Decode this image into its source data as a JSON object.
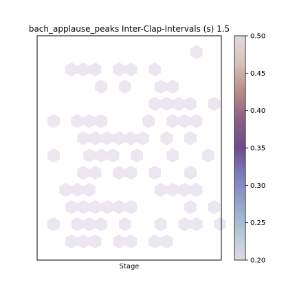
{
  "chart_data": {
    "type": "heatmap",
    "subtype": "hexbin",
    "title": "bach_applause_peaks Inter-Clap-Intervals (s) 1.5",
    "xlabel": "Stage",
    "ylabel": "",
    "x_ticks_shown": false,
    "y_ticks_shown": false,
    "grid": false,
    "colormap": "twilight (lower half)",
    "cell_color": "#ebe6ef",
    "colorbar": {
      "position": "right",
      "range": [
        0.2,
        0.5
      ],
      "ticks": [
        "0.20",
        "0.25",
        "0.30",
        "0.35",
        "0.40",
        "0.45",
        "0.50"
      ],
      "colors": [
        "#e2d9e2",
        "#b3c7d5",
        "#94a6cb",
        "#7e7dc0",
        "#6e4b8d",
        "#8b5f84",
        "#b88a8a",
        "#d7c2b6",
        "#e2d9e2"
      ]
    },
    "value_note": "every occupied cell has the colorbar minimum value",
    "cells": [
      {
        "col": 12,
        "row": 0,
        "value": 0.2
      },
      {
        "col": 1,
        "row": 1,
        "value": 0.2
      },
      {
        "col": 2,
        "row": 1,
        "value": 0.2
      },
      {
        "col": 3,
        "row": 1,
        "value": 0.2
      },
      {
        "col": 5,
        "row": 1,
        "value": 0.2
      },
      {
        "col": 6,
        "row": 1,
        "value": 0.2
      },
      {
        "col": 8,
        "row": 1,
        "value": 0.2
      },
      {
        "col": 4,
        "row": 2,
        "value": 0.2
      },
      {
        "col": 6,
        "row": 2,
        "value": 0.2
      },
      {
        "col": 9,
        "row": 2,
        "value": 0.2
      },
      {
        "col": 10,
        "row": 2,
        "value": 0.2
      },
      {
        "col": 8,
        "row": 3,
        "value": 0.2
      },
      {
        "col": 9,
        "row": 3,
        "value": 0.2
      },
      {
        "col": 10,
        "row": 3,
        "value": 0.2
      },
      {
        "col": 11,
        "row": 3,
        "value": 0.2
      },
      {
        "col": 13,
        "row": 3,
        "value": 0.2
      },
      {
        "col": 0,
        "row": 4,
        "value": 0.2
      },
      {
        "col": 2,
        "row": 4,
        "value": 0.2
      },
      {
        "col": 3,
        "row": 4,
        "value": 0.2
      },
      {
        "col": 4,
        "row": 4,
        "value": 0.2
      },
      {
        "col": 8,
        "row": 4,
        "value": 0.2
      },
      {
        "col": 10,
        "row": 4,
        "value": 0.2
      },
      {
        "col": 11,
        "row": 4,
        "value": 0.2
      },
      {
        "col": 12,
        "row": 4,
        "value": 0.2
      },
      {
        "col": 2,
        "row": 5,
        "value": 0.2
      },
      {
        "col": 3,
        "row": 5,
        "value": 0.2
      },
      {
        "col": 4,
        "row": 5,
        "value": 0.2
      },
      {
        "col": 5,
        "row": 5,
        "value": 0.2
      },
      {
        "col": 6,
        "row": 5,
        "value": 0.2
      },
      {
        "col": 7,
        "row": 5,
        "value": 0.2
      },
      {
        "col": 9,
        "row": 5,
        "value": 0.2
      },
      {
        "col": 11,
        "row": 5,
        "value": 0.2
      },
      {
        "col": 0,
        "row": 6,
        "value": 0.2
      },
      {
        "col": 3,
        "row": 6,
        "value": 0.2
      },
      {
        "col": 4,
        "row": 6,
        "value": 0.2
      },
      {
        "col": 5,
        "row": 6,
        "value": 0.2
      },
      {
        "col": 7,
        "row": 6,
        "value": 0.2
      },
      {
        "col": 10,
        "row": 6,
        "value": 0.2
      },
      {
        "col": 13,
        "row": 6,
        "value": 0.2
      },
      {
        "col": 2,
        "row": 7,
        "value": 0.2
      },
      {
        "col": 3,
        "row": 7,
        "value": 0.2
      },
      {
        "col": 5,
        "row": 7,
        "value": 0.2
      },
      {
        "col": 6,
        "row": 7,
        "value": 0.2
      },
      {
        "col": 8,
        "row": 7,
        "value": 0.2
      },
      {
        "col": 11,
        "row": 7,
        "value": 0.2
      },
      {
        "col": 1,
        "row": 8,
        "value": 0.2
      },
      {
        "col": 2,
        "row": 8,
        "value": 0.2
      },
      {
        "col": 3,
        "row": 8,
        "value": 0.2
      },
      {
        "col": 9,
        "row": 8,
        "value": 0.2
      },
      {
        "col": 10,
        "row": 8,
        "value": 0.2
      },
      {
        "col": 11,
        "row": 8,
        "value": 0.2
      },
      {
        "col": 12,
        "row": 8,
        "value": 0.2
      },
      {
        "col": 1,
        "row": 9,
        "value": 0.2
      },
      {
        "col": 2,
        "row": 9,
        "value": 0.2
      },
      {
        "col": 3,
        "row": 9,
        "value": 0.2
      },
      {
        "col": 4,
        "row": 9,
        "value": 0.2
      },
      {
        "col": 5,
        "row": 9,
        "value": 0.2
      },
      {
        "col": 6,
        "row": 9,
        "value": 0.2
      },
      {
        "col": 11,
        "row": 9,
        "value": 0.2
      },
      {
        "col": 13,
        "row": 9,
        "value": 0.2
      },
      {
        "col": 0,
        "row": 10,
        "value": 0.2
      },
      {
        "col": 2,
        "row": 10,
        "value": 0.2
      },
      {
        "col": 3,
        "row": 10,
        "value": 0.2
      },
      {
        "col": 4,
        "row": 10,
        "value": 0.2
      },
      {
        "col": 6,
        "row": 10,
        "value": 0.2
      },
      {
        "col": 9,
        "row": 10,
        "value": 0.2
      },
      {
        "col": 11,
        "row": 10,
        "value": 0.2
      },
      {
        "col": 12,
        "row": 10,
        "value": 0.2
      },
      {
        "col": 14,
        "row": 10,
        "value": 0.2
      },
      {
        "col": 1,
        "row": 11,
        "value": 0.2
      },
      {
        "col": 2,
        "row": 11,
        "value": 0.2
      },
      {
        "col": 3,
        "row": 11,
        "value": 0.2
      },
      {
        "col": 5,
        "row": 11,
        "value": 0.2
      },
      {
        "col": 6,
        "row": 11,
        "value": 0.2
      },
      {
        "col": 8,
        "row": 11,
        "value": 0.2
      },
      {
        "col": 9,
        "row": 11,
        "value": 0.2
      }
    ]
  }
}
